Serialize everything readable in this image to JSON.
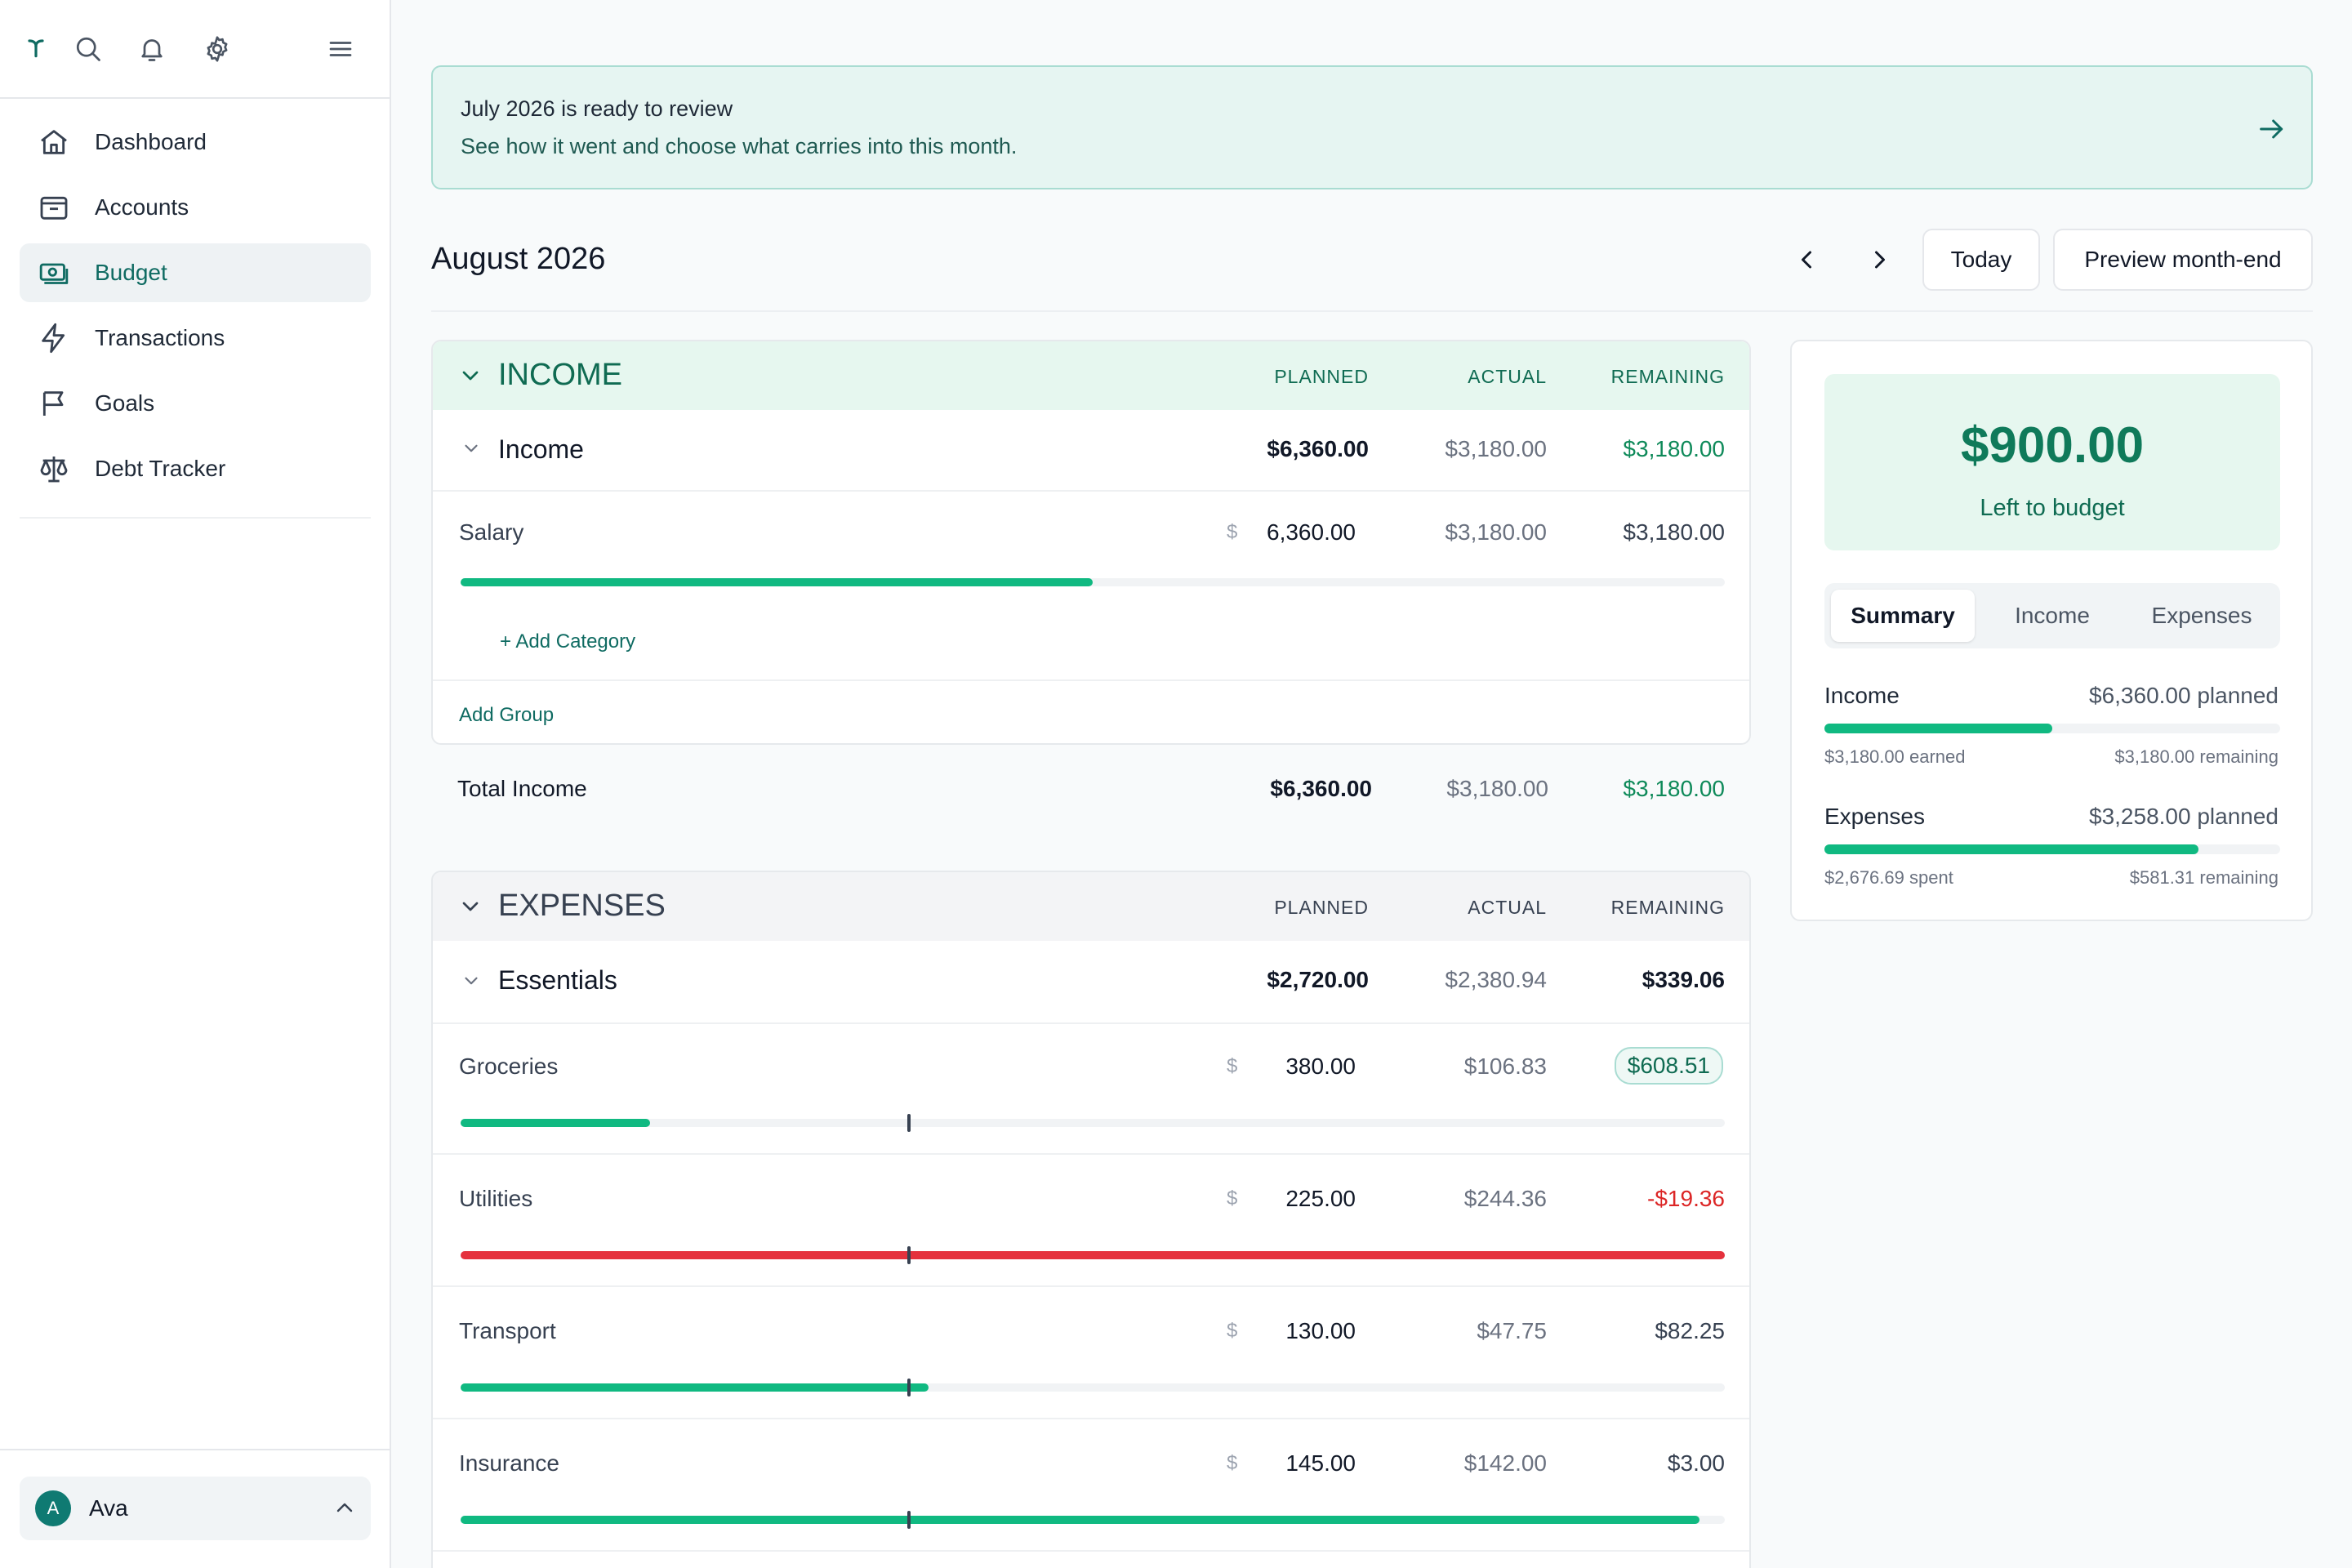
{
  "sidebar": {
    "nav": [
      {
        "label": "Dashboard",
        "icon": "home-icon"
      },
      {
        "label": "Accounts",
        "icon": "accounts-icon"
      },
      {
        "label": "Budget",
        "icon": "budget-icon",
        "active": true
      },
      {
        "label": "Transactions",
        "icon": "lightning-icon"
      },
      {
        "label": "Goals",
        "icon": "flag-icon"
      },
      {
        "label": "Debt Tracker",
        "icon": "scale-icon"
      }
    ],
    "user": {
      "initial": "A",
      "name": "Ava"
    }
  },
  "banner": {
    "title": "July 2026 is ready to review",
    "subtitle": "See how it went and choose what carries into this month."
  },
  "header": {
    "month": "August 2026",
    "today_label": "Today",
    "preview_label": "Preview month-end"
  },
  "columns": {
    "planned": "PLANNED",
    "actual": "ACTUAL",
    "remaining": "REMAINING"
  },
  "income": {
    "section_title": "INCOME",
    "group": {
      "name": "Income",
      "planned": "$6,360.00",
      "actual": "$3,180.00",
      "remaining": "$3,180.00"
    },
    "categories": [
      {
        "name": "Salary",
        "currency": "$",
        "planned": "6,360.00",
        "actual": "$3,180.00",
        "remaining": "$3,180.00",
        "progress": 0.5
      }
    ],
    "add_category": "+ Add Category",
    "add_group": "Add Group",
    "total": {
      "label": "Total Income",
      "planned": "$6,360.00",
      "actual": "$3,180.00",
      "remaining": "$3,180.00"
    }
  },
  "expenses": {
    "section_title": "EXPENSES",
    "group": {
      "name": "Essentials",
      "planned": "$2,720.00",
      "actual": "$2,380.94",
      "remaining": "$339.06"
    },
    "categories": [
      {
        "name": "Groceries",
        "currency": "$",
        "planned": "380.00",
        "actual": "$106.83",
        "remaining": "$608.51",
        "progress": 0.15,
        "status": "ok"
      },
      {
        "name": "Utilities",
        "currency": "$",
        "planned": "225.00",
        "actual": "$244.36",
        "remaining": "-$19.36",
        "progress": 1.0,
        "status": "over"
      },
      {
        "name": "Transport",
        "currency": "$",
        "planned": "130.00",
        "actual": "$47.75",
        "remaining": "$82.25",
        "progress": 0.37,
        "status": "ok"
      },
      {
        "name": "Insurance",
        "currency": "$",
        "planned": "145.00",
        "actual": "$142.00",
        "remaining": "$3.00",
        "progress": 0.98,
        "status": "ok"
      }
    ]
  },
  "summary": {
    "left_amount": "$900.00",
    "left_label": "Left to budget",
    "tabs": [
      "Summary",
      "Income",
      "Expenses"
    ],
    "income": {
      "label": "Income",
      "planned": "$6,360.00 planned",
      "sub_left": "$3,180.00 earned",
      "sub_right": "$3,180.00 remaining",
      "progress": 0.5
    },
    "expenses": {
      "label": "Expenses",
      "planned": "$3,258.00 planned",
      "sub_left": "$2,676.69 spent",
      "sub_right": "$581.31 remaining",
      "progress": 0.82
    }
  },
  "colors": {
    "accent": "#0f7a5a",
    "bar_green": "#10b981",
    "bar_red": "#e5313d",
    "teal": "#0f6b62"
  }
}
